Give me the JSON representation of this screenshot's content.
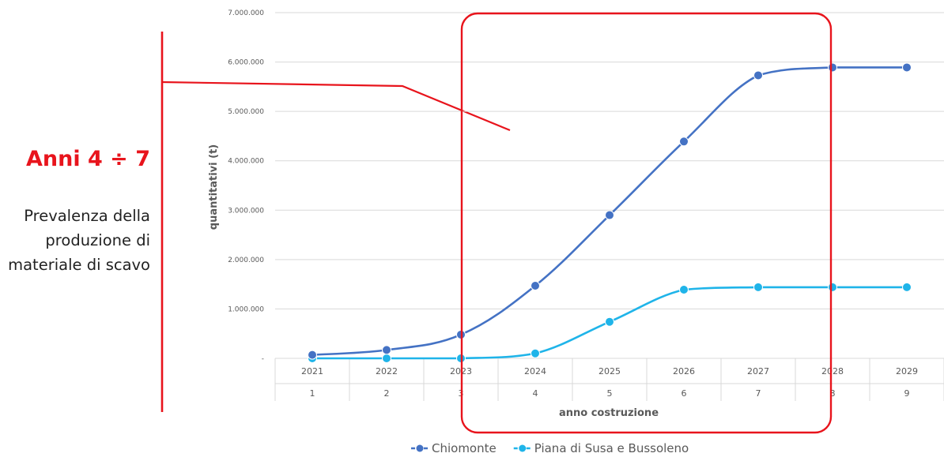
{
  "annotation": {
    "title": "Anni 4 ÷ 7",
    "text": "Prevalenza della produzione di materiale di scavo",
    "highlight_years": [
      4,
      7
    ],
    "color": "#e8141c"
  },
  "chart_data": {
    "type": "line",
    "categories": [
      "2021",
      "2022",
      "2023",
      "2024",
      "2025",
      "2026",
      "2027",
      "2028",
      "2029"
    ],
    "categories_secondary": [
      "1",
      "2",
      "3",
      "4",
      "5",
      "6",
      "7",
      "8",
      "9"
    ],
    "series": [
      {
        "name": "Chiomonte",
        "color": "#4472c4",
        "values": [
          70000,
          170000,
          480000,
          1470000,
          2900000,
          4390000,
          5730000,
          5890000,
          5890000
        ]
      },
      {
        "name": "Piana di Susa e Bussoleno",
        "color": "#1fb4e9",
        "values": [
          0,
          0,
          0,
          100000,
          740000,
          1390000,
          1440000,
          1440000,
          1440000
        ]
      }
    ],
    "xlabel": "anno costruzione",
    "ylabel": "quantitativi (t)",
    "ylim": [
      0,
      7000000
    ],
    "yticks": [
      0,
      1000000,
      2000000,
      3000000,
      4000000,
      5000000,
      6000000,
      7000000
    ],
    "ytick_labels": [
      "-",
      "1.000.000",
      "2.000.000",
      "3.000.000",
      "4.000.000",
      "5.000.000",
      "6.000.000",
      "7.000.000"
    ],
    "grid": true,
    "legend": "bottom"
  }
}
